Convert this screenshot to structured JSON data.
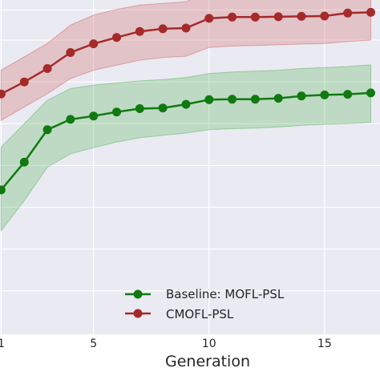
{
  "chart_data": {
    "type": "line",
    "title": "",
    "xlabel": "Generation",
    "ylabel": "",
    "xlim": [
      0.95,
      17.4
    ],
    "ylim": [
      0,
      1
    ],
    "y_values_normalized": true,
    "xticks": [
      1,
      5,
      10,
      15
    ],
    "grid": true,
    "background": "#eaeaf2",
    "legend_placement": "lower-center",
    "x": [
      1,
      2,
      3,
      4,
      5,
      6,
      7,
      8,
      9,
      10,
      11,
      12,
      13,
      14,
      15,
      16,
      17
    ],
    "series": [
      {
        "name": "Baseline: MOFL-PSL",
        "color": "#107a10",
        "band_color": "#4caf50",
        "values": [
          0.432,
          0.515,
          0.612,
          0.643,
          0.653,
          0.665,
          0.675,
          0.677,
          0.688,
          0.702,
          0.703,
          0.703,
          0.706,
          0.713,
          0.716,
          0.718,
          0.722
        ],
        "lower": [
          0.31,
          0.4,
          0.5,
          0.54,
          0.558,
          0.575,
          0.588,
          0.595,
          0.602,
          0.612,
          0.615,
          0.617,
          0.62,
          0.625,
          0.628,
          0.63,
          0.634
        ],
        "upper": [
          0.56,
          0.63,
          0.7,
          0.735,
          0.745,
          0.752,
          0.758,
          0.762,
          0.768,
          0.78,
          0.785,
          0.787,
          0.79,
          0.795,
          0.798,
          0.801,
          0.806
        ]
      },
      {
        "name": "CMOFL-PSL",
        "color": "#a52a2a",
        "band_color": "#cd5c5c",
        "values": [
          0.719,
          0.755,
          0.795,
          0.843,
          0.869,
          0.888,
          0.906,
          0.914,
          0.916,
          0.945,
          0.949,
          0.949,
          0.95,
          0.951,
          0.952,
          0.961,
          0.963
        ],
        "lower": [
          0.64,
          0.68,
          0.72,
          0.765,
          0.79,
          0.805,
          0.82,
          0.828,
          0.832,
          0.858,
          0.862,
          0.864,
          0.866,
          0.868,
          0.87,
          0.876,
          0.88
        ],
        "upper": [
          0.79,
          0.83,
          0.87,
          0.925,
          0.955,
          0.972,
          0.985,
          0.99,
          0.995,
          1.025,
          1.03,
          1.032,
          1.034,
          1.036,
          1.038,
          1.045,
          1.048
        ]
      }
    ]
  }
}
